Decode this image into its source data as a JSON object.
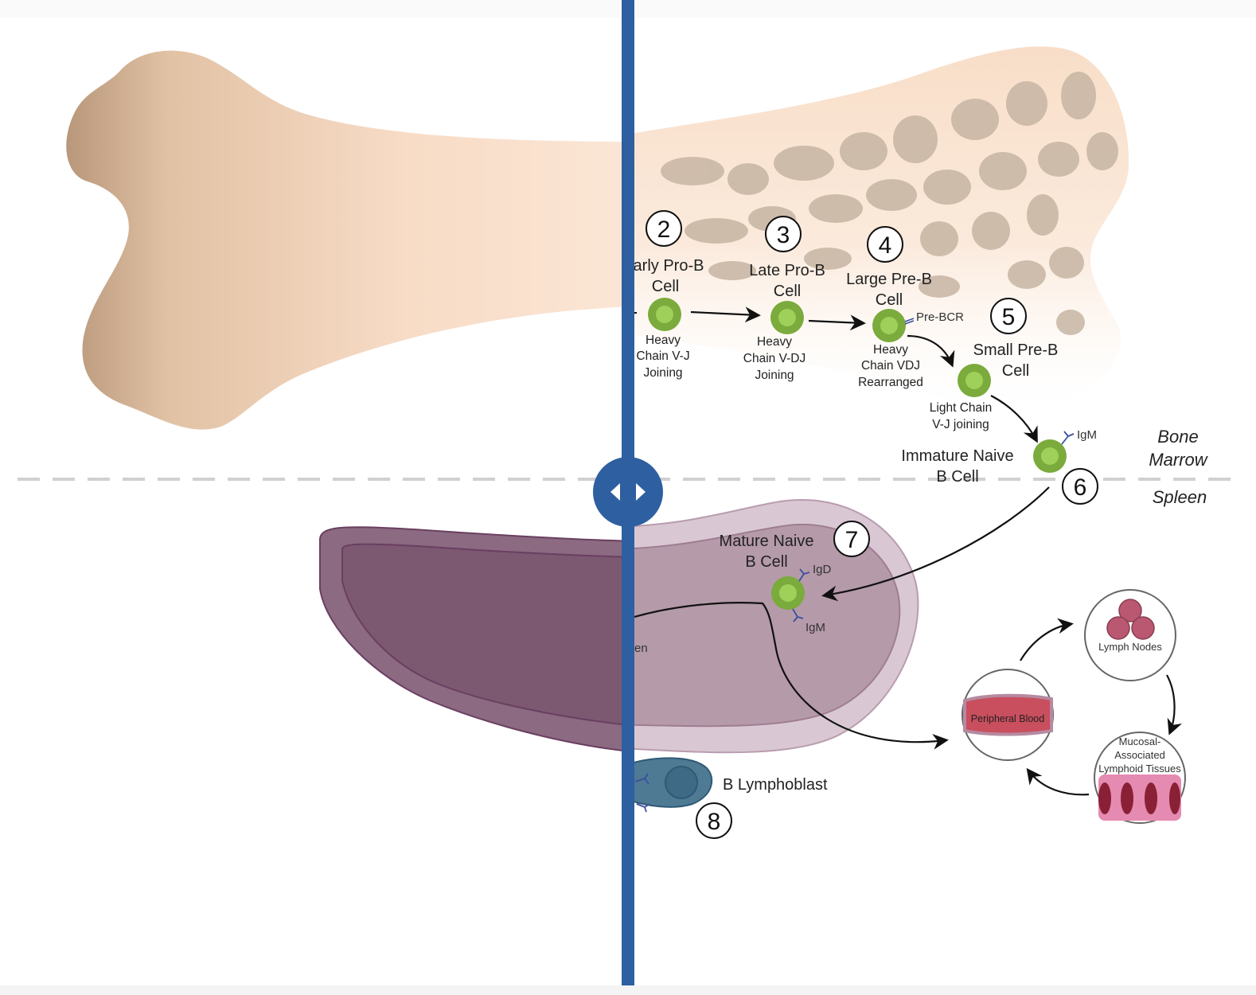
{
  "steps": [
    {
      "number": "2",
      "title_line1": "arly Pro-B",
      "title_line2": "Cell",
      "desc_line1": "Heavy",
      "desc_line2": "Chain V-J",
      "desc_line3": "Joining"
    },
    {
      "number": "3",
      "title_line1": "Late Pro-B",
      "title_line2": "Cell",
      "desc_line1": "Heavy",
      "desc_line2": "Chain V-DJ",
      "desc_line3": "Joining"
    },
    {
      "number": "4",
      "title_line1": "Large Pre-B",
      "title_line2": "Cell",
      "receptor": "Pre-BCR",
      "desc_line1": "Heavy",
      "desc_line2": "Chain VDJ",
      "desc_line3": "Rearranged"
    },
    {
      "number": "5",
      "title_line1": "Small Pre-B",
      "title_line2": "Cell",
      "desc_line1": "Light Chain",
      "desc_line2": "V-J joining"
    },
    {
      "number": "6",
      "title_line1": "Immature Naive",
      "title_line2": "B Cell",
      "receptor": "IgM"
    },
    {
      "number": "7",
      "title_line1": "Mature Naive",
      "title_line2": "B Cell",
      "receptor_top": "IgD",
      "receptor_bottom": "IgM"
    },
    {
      "number": "8",
      "title_line1": "B Lymphoblast"
    }
  ],
  "regions": {
    "bone_marrow_line1": "Bone",
    "bone_marrow_line2": "Marrow",
    "spleen": "Spleen",
    "spleen_partial": "en"
  },
  "circulation": {
    "peripheral_blood": "Peripheral Blood",
    "lymph_nodes": "Lymph Nodes",
    "malt_line1": "Mucosal-",
    "malt_line2": "Associated",
    "malt_line3": "Lymphoid Tissues"
  },
  "colors": {
    "divider": "#2e5fa0",
    "cell_green": "#7aab3c",
    "bone": "#f3d3b7",
    "spleen": "#7a5570"
  }
}
